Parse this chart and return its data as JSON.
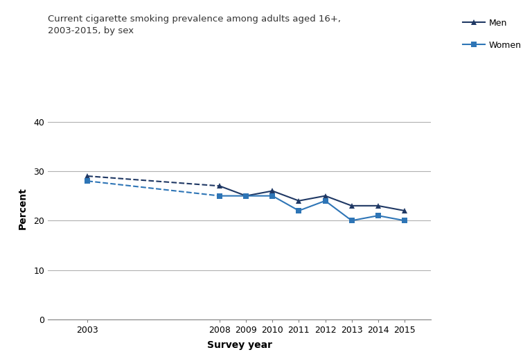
{
  "title_line1": "Current cigarette smoking prevalence among adults aged 16+,",
  "title_line2": "2003-2015, by sex",
  "xlabel": "Survey year",
  "ylabel": "Percent",
  "men_dashed_years": [
    2003,
    2008
  ],
  "men_dashed_values": [
    29,
    27
  ],
  "women_dashed_years": [
    2003,
    2008
  ],
  "women_dashed_values": [
    28,
    25
  ],
  "men_solid_years": [
    2008,
    2009,
    2010,
    2011,
    2012,
    2013,
    2014,
    2015
  ],
  "men_solid_values": [
    27,
    25,
    26,
    24,
    25,
    23,
    23,
    22
  ],
  "women_solid_years": [
    2008,
    2009,
    2010,
    2011,
    2012,
    2013,
    2014,
    2015
  ],
  "women_solid_values": [
    25,
    25,
    25,
    22,
    24,
    20,
    21,
    20
  ],
  "men_marker_2003_x": [
    2003
  ],
  "men_marker_2003_y": [
    29
  ],
  "women_marker_2003_x": [
    2003
  ],
  "women_marker_2003_y": [
    28
  ],
  "men_color": "#1f3864",
  "women_color": "#2e75b6",
  "ylim": [
    0,
    45
  ],
  "yticks": [
    0,
    10,
    20,
    30,
    40
  ],
  "xlim_left": 2001.5,
  "xlim_right": 2016.0,
  "xtick_positions": [
    2003,
    2008,
    2009,
    2010,
    2011,
    2012,
    2013,
    2014,
    2015
  ],
  "xtick_labels": [
    "2003",
    "2008",
    "2009",
    "2010",
    "2011",
    "2012",
    "2013",
    "2014",
    "2015"
  ],
  "grid_color": "#b0b0b0",
  "background_color": "#ffffff",
  "title_fontsize": 9.5,
  "axis_label_fontsize": 10,
  "tick_fontsize": 9,
  "legend_fontsize": 9,
  "legend_men_label": "Men",
  "legend_women_label": "Women"
}
